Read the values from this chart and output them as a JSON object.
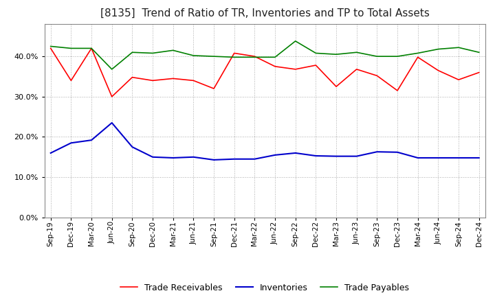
{
  "title": "[8135]  Trend of Ratio of TR, Inventories and TP to Total Assets",
  "title_fontsize": 11,
  "background_color": "#ffffff",
  "grid_color": "#aaaaaa",
  "labels": [
    "Sep-19",
    "Dec-19",
    "Mar-20",
    "Jun-20",
    "Sep-20",
    "Dec-20",
    "Mar-21",
    "Jun-21",
    "Sep-21",
    "Dec-21",
    "Mar-22",
    "Jun-22",
    "Sep-22",
    "Dec-22",
    "Mar-23",
    "Jun-23",
    "Sep-23",
    "Dec-23",
    "Mar-24",
    "Jun-24",
    "Sep-24",
    "Dec-24"
  ],
  "trade_receivables": [
    0.42,
    0.34,
    0.42,
    0.3,
    0.348,
    0.34,
    0.345,
    0.34,
    0.32,
    0.408,
    0.4,
    0.375,
    0.368,
    0.378,
    0.325,
    0.368,
    0.352,
    0.315,
    0.398,
    0.365,
    0.342,
    0.36
  ],
  "inventories": [
    0.16,
    0.185,
    0.192,
    0.235,
    0.175,
    0.15,
    0.148,
    0.15,
    0.143,
    0.145,
    0.145,
    0.155,
    0.16,
    0.153,
    0.152,
    0.152,
    0.163,
    0.162,
    0.148,
    0.148,
    0.148,
    0.148
  ],
  "trade_payables": [
    0.425,
    0.42,
    0.42,
    0.368,
    0.41,
    0.408,
    0.415,
    0.402,
    0.4,
    0.398,
    0.398,
    0.398,
    0.438,
    0.408,
    0.405,
    0.41,
    0.4,
    0.4,
    0.408,
    0.418,
    0.422,
    0.41
  ],
  "tr_color": "#ff0000",
  "inv_color": "#0000cc",
  "tp_color": "#008000",
  "ylim": [
    0.0,
    0.48
  ],
  "yticks": [
    0.0,
    0.1,
    0.2,
    0.3,
    0.4
  ],
  "legend_labels": [
    "Trade Receivables",
    "Inventories",
    "Trade Payables"
  ]
}
